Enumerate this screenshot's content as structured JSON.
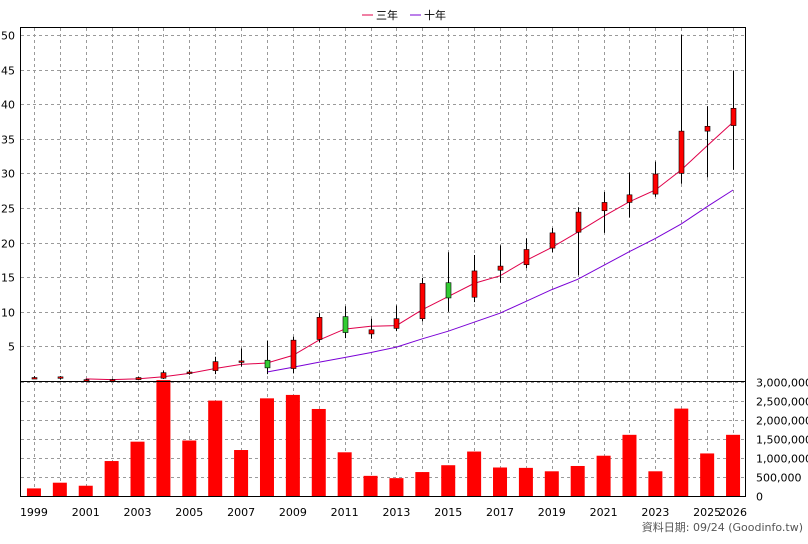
{
  "legend": [
    {
      "label": "三年",
      "color": "#e0004a"
    },
    {
      "label": "十年",
      "color": "#7a00d6"
    }
  ],
  "source_note": "資料日期: 09/24  (Goodinfo.tw)",
  "colors": {
    "up": "#ff0000",
    "down": "#33cc33",
    "volume": "#ff0000",
    "wick": "#000000"
  },
  "chart_data": [
    {
      "type": "candlestick",
      "title": "",
      "ylim": [
        0,
        51
      ],
      "yticks": [
        5,
        10,
        15,
        20,
        25,
        30,
        35,
        40,
        45,
        50
      ],
      "x_tick_labels": [
        "1999",
        "2001",
        "2003",
        "2005",
        "2007",
        "2009",
        "2011",
        "2013",
        "2015",
        "2017",
        "2019",
        "2021",
        "2023",
        "2025",
        "2026"
      ],
      "years": [
        1999,
        2000,
        2001,
        2002,
        2003,
        2004,
        2005,
        2006,
        2007,
        2008,
        2009,
        2010,
        2011,
        2012,
        2013,
        2014,
        2015,
        2016,
        2017,
        2018,
        2019,
        2020,
        2021,
        2022,
        2023,
        2024,
        2025,
        2026
      ],
      "candles": [
        {
          "year": 1999,
          "open": 0.5,
          "close": 0.5,
          "high": 0.7,
          "low": 0.3
        },
        {
          "year": 2000,
          "open": 0.4,
          "close": 0.6,
          "high": 0.7,
          "low": 0.2
        },
        {
          "year": 2001,
          "open": 0.2,
          "close": 0.2,
          "high": 0.3,
          "low": 0.1
        },
        {
          "year": 2002,
          "open": 0.1,
          "close": 0.2,
          "high": 0.3,
          "low": 0.1
        },
        {
          "year": 2003,
          "open": 0.2,
          "close": 0.5,
          "high": 0.6,
          "low": 0.1
        },
        {
          "year": 2004,
          "open": 0.4,
          "close": 1.2,
          "high": 1.5,
          "low": 0.3
        },
        {
          "year": 2005,
          "open": 1.1,
          "close": 1.3,
          "high": 1.6,
          "low": 0.9
        },
        {
          "year": 2006,
          "open": 1.5,
          "close": 2.8,
          "high": 3.5,
          "low": 1.0
        },
        {
          "year": 2007,
          "open": 2.7,
          "close": 2.9,
          "high": 4.7,
          "low": 2.1
        },
        {
          "year": 2008,
          "open": 3.0,
          "close": 1.9,
          "high": 5.8,
          "low": 1.0
        },
        {
          "year": 2009,
          "open": 1.8,
          "close": 5.9,
          "high": 6.4,
          "low": 1.1
        },
        {
          "year": 2010,
          "open": 6.0,
          "close": 9.2,
          "high": 9.8,
          "low": 5.6
        },
        {
          "year": 2011,
          "open": 9.3,
          "close": 7.0,
          "high": 10.8,
          "low": 6.2
        },
        {
          "year": 2012,
          "open": 6.8,
          "close": 7.4,
          "high": 9.0,
          "low": 6.1
        },
        {
          "year": 2013,
          "open": 7.6,
          "close": 9.0,
          "high": 10.9,
          "low": 7.2
        },
        {
          "year": 2014,
          "open": 9.0,
          "close": 14.1,
          "high": 14.9,
          "low": 8.6
        },
        {
          "year": 2015,
          "open": 14.2,
          "close": 12.0,
          "high": 18.6,
          "low": 10.0
        },
        {
          "year": 2016,
          "open": 12.1,
          "close": 15.9,
          "high": 18.2,
          "low": 11.4
        },
        {
          "year": 2017,
          "open": 16.0,
          "close": 16.6,
          "high": 19.6,
          "low": 14.2
        },
        {
          "year": 2018,
          "open": 16.8,
          "close": 19.0,
          "high": 20.6,
          "low": 16.3
        },
        {
          "year": 2019,
          "open": 19.2,
          "close": 21.4,
          "high": 22.1,
          "low": 18.6
        },
        {
          "year": 2020,
          "open": 21.5,
          "close": 24.4,
          "high": 25.1,
          "low": 15.3
        },
        {
          "year": 2021,
          "open": 24.6,
          "close": 25.8,
          "high": 27.3,
          "low": 21.4
        },
        {
          "year": 2022,
          "open": 25.8,
          "close": 26.9,
          "high": 30.1,
          "low": 23.6
        },
        {
          "year": 2023,
          "open": 27.0,
          "close": 29.9,
          "high": 31.7,
          "low": 26.6
        },
        {
          "year": 2024,
          "open": 30.0,
          "close": 36.1,
          "high": 50.0,
          "low": 28.5
        },
        {
          "year": 2025,
          "open": 36.1,
          "close": 36.8,
          "high": 39.7,
          "low": 29.4
        },
        {
          "year": 2026,
          "open": 36.9,
          "close": 39.4,
          "high": 44.8,
          "low": 30.5
        }
      ],
      "series": [
        {
          "name": "三年",
          "x": [
            2001,
            2002,
            2003,
            2004,
            2005,
            2006,
            2007,
            2008,
            2009,
            2010,
            2011,
            2012,
            2013,
            2014,
            2015,
            2016,
            2017,
            2018,
            2019,
            2020,
            2021,
            2022,
            2023,
            2024,
            2025,
            2026
          ],
          "values": [
            0.3,
            0.2,
            0.3,
            0.6,
            1.1,
            1.8,
            2.4,
            2.6,
            3.7,
            5.9,
            7.5,
            7.9,
            8.0,
            10.3,
            12.2,
            14.1,
            15.2,
            17.4,
            19.3,
            21.5,
            23.8,
            25.9,
            27.6,
            30.5,
            34.0,
            37.4
          ]
        },
        {
          "name": "十年",
          "x": [
            2008,
            2009,
            2010,
            2011,
            2012,
            2013,
            2014,
            2015,
            2016,
            2017,
            2018,
            2019,
            2020,
            2021,
            2022,
            2023,
            2024,
            2025,
            2026
          ],
          "values": [
            1.3,
            2.0,
            2.7,
            3.4,
            4.1,
            4.9,
            6.1,
            7.2,
            8.5,
            9.8,
            11.5,
            13.2,
            14.7,
            16.7,
            18.7,
            20.6,
            22.7,
            25.2,
            27.6
          ]
        }
      ]
    },
    {
      "type": "bar",
      "title": "",
      "ylim": [
        0,
        3000000
      ],
      "yticks": [
        0,
        500000,
        1000000,
        1500000,
        2000000,
        2500000,
        3000000
      ],
      "ytick_labels": [
        "0",
        "500,000",
        "1,000,000",
        "1,500,000",
        "2,000,000",
        "2,500,000",
        "3,000,000"
      ],
      "categories": [
        1999,
        2000,
        2001,
        2002,
        2003,
        2004,
        2005,
        2006,
        2007,
        2008,
        2009,
        2010,
        2011,
        2012,
        2013,
        2014,
        2015,
        2016,
        2017,
        2018,
        2019,
        2020,
        2021,
        2022,
        2023,
        2024,
        2025,
        2026
      ],
      "values": [
        200000,
        350000,
        270000,
        920000,
        1430000,
        3050000,
        1460000,
        2510000,
        1210000,
        2570000,
        2660000,
        2290000,
        1150000,
        530000,
        470000,
        630000,
        810000,
        1170000,
        750000,
        740000,
        650000,
        790000,
        1060000,
        1610000,
        650000,
        2300000,
        1120000,
        1610000
      ]
    }
  ]
}
